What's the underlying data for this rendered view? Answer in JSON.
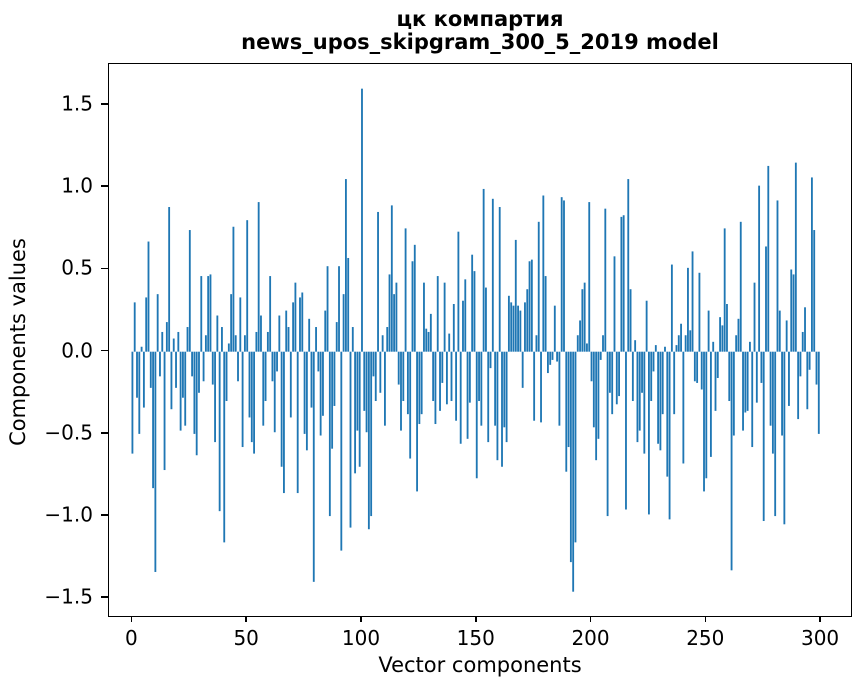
{
  "title": {
    "line1": "цк компартия",
    "line2": "news_upos_skipgram_300_5_2019 model"
  },
  "axes": {
    "xlabel": "Vector components",
    "ylabel": "Components values",
    "x_tick_labels": [
      "0",
      "50",
      "100",
      "150",
      "200",
      "250",
      "300"
    ],
    "y_tick_labels": [
      "−1.5",
      "−1.0",
      "−0.5",
      "0.0",
      "0.5",
      "1.0",
      "1.5"
    ]
  },
  "chart_data": {
    "type": "bar",
    "title": "цк компартия\nnews_upos_skipgram_300_5_2019 model",
    "xlabel": "Vector components",
    "ylabel": "Components values",
    "x_ticks": [
      0,
      50,
      100,
      150,
      200,
      250,
      300
    ],
    "y_ticks": [
      -1.5,
      -1.0,
      -0.5,
      0.0,
      0.5,
      1.0,
      1.5
    ],
    "xlim": [
      -10.2,
      313.9
    ],
    "ylim": [
      -1.62,
      1.75
    ],
    "grid": false,
    "legend": false,
    "bar_color": "#1f77b4",
    "bar_width": 0.8,
    "n_components": 300,
    "values": [
      -0.62,
      0.3,
      -0.28,
      -0.5,
      0.03,
      -0.34,
      0.33,
      0.67,
      -0.22,
      -0.83,
      -1.34,
      0.35,
      -0.15,
      0.12,
      -0.72,
      0.18,
      0.88,
      -0.35,
      0.08,
      -0.22,
      0.12,
      -0.48,
      -0.28,
      -0.45,
      0.15,
      0.74,
      -0.15,
      -0.5,
      -0.63,
      -0.25,
      0.46,
      -0.18,
      0.1,
      0.46,
      0.47,
      -0.2,
      -0.55,
      0.22,
      -0.97,
      0.15,
      -1.16,
      -0.3,
      0.05,
      0.35,
      0.76,
      0.1,
      -0.18,
      0.33,
      -0.58,
      0.1,
      0.8,
      -0.4,
      -0.55,
      -0.62,
      0.12,
      0.91,
      0.22,
      -0.45,
      -0.3,
      0.12,
      0.46,
      -0.18,
      -0.49,
      -0.12,
      0.22,
      -0.7,
      -0.86,
      0.25,
      0.15,
      -0.4,
      0.3,
      0.42,
      -0.86,
      0.33,
      0.36,
      -0.5,
      -0.6,
      0.2,
      -0.34,
      -1.4,
      0.15,
      -0.12,
      -0.51,
      -0.39,
      0.25,
      0.52,
      -1.0,
      -0.59,
      -0.33,
      0.18,
      0.52,
      -1.21,
      0.35,
      1.05,
      0.57,
      -1.07,
      0.15,
      -0.74,
      -0.48,
      -0.7,
      1.6,
      -0.36,
      -0.49,
      -1.08,
      -1.0,
      -0.15,
      -0.3,
      0.85,
      -0.25,
      0.1,
      -0.45,
      0.15,
      0.47,
      0.89,
      0.35,
      0.42,
      -0.2,
      -0.48,
      -0.3,
      0.75,
      -0.38,
      -0.65,
      0.55,
      0.65,
      -0.85,
      -0.44,
      -0.38,
      0.42,
      0.14,
      0.12,
      0.23,
      -0.3,
      -0.44,
      0.46,
      -0.36,
      -0.19,
      0.42,
      -0.32,
      0.11,
      -0.3,
      0.29,
      -0.42,
      0.73,
      -0.56,
      0.31,
      0.44,
      -0.53,
      -0.31,
      0.59,
      0.49,
      -0.77,
      -0.3,
      -0.45,
      0.99,
      0.39,
      -0.55,
      -0.1,
      0.93,
      -0.45,
      -0.66,
      0.88,
      -0.7,
      -0.46,
      -0.55,
      0.34,
      0.3,
      0.28,
      0.68,
      0.28,
      0.25,
      -0.22,
      0.3,
      0.38,
      0.55,
      0.56,
      -0.42,
      0.1,
      0.79,
      -0.43,
      0.95,
      0.46,
      -0.13,
      -0.08,
      -0.05,
      0.28,
      -0.06,
      -0.45,
      0.94,
      0.92,
      -0.73,
      -0.58,
      -1.28,
      -1.46,
      -1.16,
      0.1,
      0.19,
      0.38,
      0.42,
      0.05,
      0.91,
      -0.18,
      -0.46,
      -0.66,
      -0.53,
      -0.05,
      0.1,
      0.87,
      -1.0,
      -0.25,
      -0.38,
      0.58,
      -0.32,
      -0.27,
      0.82,
      0.83,
      -0.96,
      1.05,
      0.38,
      -0.3,
      0.07,
      -0.55,
      -0.48,
      -0.25,
      -0.62,
      0.31,
      -0.99,
      -0.3,
      -0.12,
      0.04,
      -0.56,
      -0.6,
      -0.38,
      0.03,
      -0.76,
      -1.02,
      0.53,
      -0.38,
      0.04,
      0.1,
      0.17,
      -0.68,
      0.1,
      0.51,
      0.13,
      0.61,
      -0.18,
      -0.19,
      0.48,
      -0.23,
      -0.85,
      -0.77,
      0.25,
      -0.64,
      0.06,
      -0.36,
      -0.16,
      0.21,
      0.16,
      0.75,
      0.29,
      -0.3,
      -1.33,
      -0.51,
      0.1,
      0.2,
      0.79,
      -0.48,
      -0.37,
      -0.36,
      0.06,
      -0.58,
      0.42,
      -0.31,
      1.01,
      -0.19,
      -1.03,
      0.64,
      1.13,
      -0.45,
      -0.62,
      -1.0,
      0.92,
      0.25,
      -0.51,
      -1.05,
      0.19,
      -0.33,
      0.5,
      0.47,
      1.15,
      -0.41,
      -0.15,
      0.12,
      0.27,
      -0.35,
      -0.11,
      1.06,
      0.74,
      -0.2,
      -0.5
    ]
  }
}
